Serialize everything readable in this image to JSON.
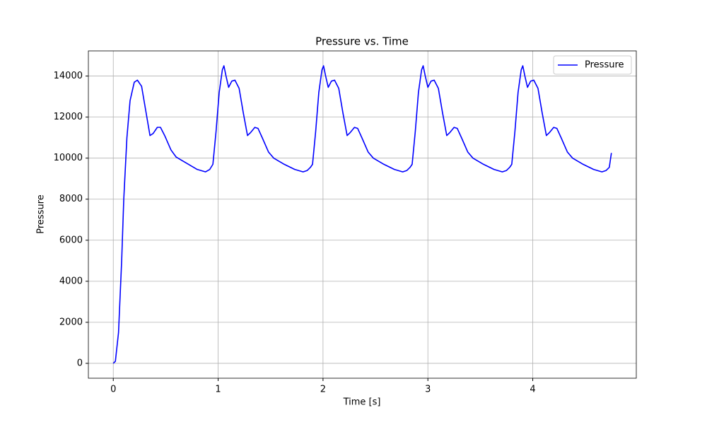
{
  "chart_data": {
    "type": "line",
    "title": "Pressure vs. Time",
    "x_label": "Time [s]",
    "y_label": "Pressure",
    "x": [
      0,
      0.02,
      0.05,
      0.08,
      0.1,
      0.13,
      0.16,
      0.2,
      0.23,
      0.27,
      0.31,
      0.35,
      0.38,
      0.42,
      0.45,
      0.49,
      0.55,
      0.6,
      0.7,
      0.8,
      0.88,
      0.92,
      0.95,
      0.98,
      1.01,
      1.04,
      1.055,
      1.075,
      1.1,
      1.13,
      1.16,
      1.2,
      1.24,
      1.28,
      1.31,
      1.35,
      1.38,
      1.42,
      1.48,
      1.53,
      1.63,
      1.73,
      1.81,
      1.85,
      1.88,
      1.9,
      1.93,
      1.96,
      1.99,
      2.005,
      2.025,
      2.05,
      2.08,
      2.11,
      2.15,
      2.19,
      2.23,
      2.26,
      2.3,
      2.33,
      2.37,
      2.43,
      2.48,
      2.58,
      2.68,
      2.76,
      2.8,
      2.83,
      2.85,
      2.88,
      2.91,
      2.94,
      2.955,
      2.975,
      3.0,
      3.03,
      3.06,
      3.1,
      3.14,
      3.18,
      3.21,
      3.25,
      3.28,
      3.32,
      3.38,
      3.43,
      3.53,
      3.63,
      3.71,
      3.75,
      3.78,
      3.8,
      3.83,
      3.86,
      3.89,
      3.905,
      3.925,
      3.95,
      3.98,
      4.01,
      4.05,
      4.09,
      4.13,
      4.16,
      4.2,
      4.23,
      4.27,
      4.33,
      4.38,
      4.48,
      4.58,
      4.66,
      4.7,
      4.73,
      4.75
    ],
    "series": [
      {
        "name": "Pressure",
        "color": "#0000ff",
        "values": [
          0,
          100,
          1500,
          5000,
          8000,
          11000,
          12800,
          13700,
          13800,
          13500,
          12300,
          11100,
          11200,
          11500,
          11500,
          11100,
          10400,
          10050,
          9750,
          9450,
          9330,
          9450,
          9700,
          11300,
          13200,
          14300,
          14500,
          14000,
          13450,
          13750,
          13800,
          13400,
          12200,
          11100,
          11250,
          11500,
          11450,
          11000,
          10300,
          10000,
          9700,
          9450,
          9330,
          9400,
          9550,
          9700,
          11300,
          13200,
          14300,
          14500,
          14000,
          13450,
          13750,
          13800,
          13400,
          12200,
          11100,
          11250,
          11500,
          11450,
          11000,
          10300,
          10000,
          9700,
          9450,
          9330,
          9400,
          9550,
          9700,
          11300,
          13200,
          14300,
          14500,
          14000,
          13450,
          13750,
          13800,
          13400,
          12200,
          11100,
          11250,
          11500,
          11450,
          11000,
          10300,
          10000,
          9700,
          9450,
          9330,
          9400,
          9550,
          9700,
          11300,
          13200,
          14300,
          14500,
          14000,
          13450,
          13750,
          13800,
          13400,
          12200,
          11100,
          11250,
          11500,
          11450,
          11000,
          10300,
          10000,
          9700,
          9450,
          9330,
          9400,
          9550,
          10250
        ]
      }
    ],
    "xlim": [
      -0.2375,
      4.9875
    ],
    "ylim": [
      -725,
      15225
    ],
    "xticks": [
      0,
      1,
      2,
      3,
      4
    ],
    "yticks": [
      0,
      2000,
      4000,
      6000,
      8000,
      10000,
      12000,
      14000
    ],
    "grid": true,
    "legend": "upper-right"
  }
}
